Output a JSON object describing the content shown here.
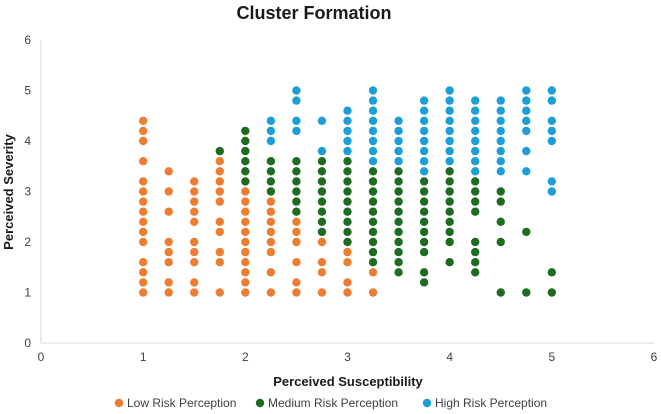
{
  "chart_data": {
    "type": "scatter",
    "title": "Cluster Formation",
    "xlabel": "Perceived Susceptibility",
    "ylabel": "Perceived Severity",
    "xlim": [
      0,
      6
    ],
    "ylim": [
      0,
      6
    ],
    "xticks": [
      0,
      1,
      2,
      3,
      4,
      5,
      6
    ],
    "yticks": [
      0,
      1,
      2,
      3,
      4,
      5,
      6
    ],
    "grid": false,
    "legend_position": "bottom",
    "series": [
      {
        "name": "Low Risk Perception",
        "color": "#ED7D31",
        "points": [
          [
            1,
            1
          ],
          [
            1,
            1.2
          ],
          [
            1,
            1.4
          ],
          [
            1,
            1.6
          ],
          [
            1,
            2
          ],
          [
            1,
            2.2
          ],
          [
            1,
            2.4
          ],
          [
            1,
            2.6
          ],
          [
            1,
            2.8
          ],
          [
            1,
            3
          ],
          [
            1,
            3.2
          ],
          [
            1,
            3.6
          ],
          [
            1,
            4
          ],
          [
            1,
            4.2
          ],
          [
            1,
            4.4
          ],
          [
            1.25,
            1
          ],
          [
            1.25,
            1.2
          ],
          [
            1.25,
            1.6
          ],
          [
            1.25,
            1.8
          ],
          [
            1.25,
            2
          ],
          [
            1.25,
            2.6
          ],
          [
            1.25,
            3
          ],
          [
            1.25,
            3.4
          ],
          [
            1.5,
            1
          ],
          [
            1.5,
            1.2
          ],
          [
            1.5,
            1.6
          ],
          [
            1.5,
            1.8
          ],
          [
            1.5,
            2
          ],
          [
            1.5,
            2.4
          ],
          [
            1.5,
            2.6
          ],
          [
            1.5,
            2.8
          ],
          [
            1.5,
            3
          ],
          [
            1.5,
            3.2
          ],
          [
            1.75,
            1
          ],
          [
            1.75,
            1.6
          ],
          [
            1.75,
            1.8
          ],
          [
            1.75,
            2.2
          ],
          [
            1.75,
            2.4
          ],
          [
            1.75,
            2.8
          ],
          [
            1.75,
            3
          ],
          [
            1.75,
            3.2
          ],
          [
            1.75,
            3.4
          ],
          [
            1.75,
            3.6
          ],
          [
            2,
            1
          ],
          [
            2,
            1.2
          ],
          [
            2,
            1.4
          ],
          [
            2,
            1.6
          ],
          [
            2,
            1.8
          ],
          [
            2,
            2
          ],
          [
            2,
            2.2
          ],
          [
            2,
            2.4
          ],
          [
            2,
            2.6
          ],
          [
            2,
            2.8
          ],
          [
            2,
            3
          ],
          [
            2.25,
            1
          ],
          [
            2.25,
            1.4
          ],
          [
            2.25,
            1.8
          ],
          [
            2.25,
            2
          ],
          [
            2.25,
            2.2
          ],
          [
            2.25,
            2.4
          ],
          [
            2.25,
            2.6
          ],
          [
            2.25,
            2.8
          ],
          [
            2.5,
            1
          ],
          [
            2.5,
            1.2
          ],
          [
            2.5,
            1.6
          ],
          [
            2.5,
            2
          ],
          [
            2.5,
            2.2
          ],
          [
            2.5,
            2.4
          ],
          [
            2.75,
            1
          ],
          [
            2.75,
            1.4
          ],
          [
            2.75,
            1.6
          ],
          [
            2.75,
            2
          ],
          [
            3,
            1
          ],
          [
            3,
            1.2
          ],
          [
            3,
            1.6
          ],
          [
            3,
            1.8
          ],
          [
            3.25,
            1
          ],
          [
            3.25,
            1.4
          ]
        ]
      },
      {
        "name": "Medium Risk Perception",
        "color": "#1E6B22",
        "points": [
          [
            1.75,
            3.8
          ],
          [
            2,
            3.2
          ],
          [
            2,
            3.4
          ],
          [
            2,
            3.6
          ],
          [
            2,
            3.8
          ],
          [
            2,
            4
          ],
          [
            2,
            4.2
          ],
          [
            2.25,
            3
          ],
          [
            2.25,
            3.2
          ],
          [
            2.25,
            3.4
          ],
          [
            2.25,
            3.6
          ],
          [
            2.5,
            2.6
          ],
          [
            2.5,
            2.8
          ],
          [
            2.5,
            3
          ],
          [
            2.5,
            3.2
          ],
          [
            2.5,
            3.4
          ],
          [
            2.5,
            3.6
          ],
          [
            2.75,
            2.2
          ],
          [
            2.75,
            2.4
          ],
          [
            2.75,
            2.6
          ],
          [
            2.75,
            2.8
          ],
          [
            2.75,
            3
          ],
          [
            2.75,
            3.2
          ],
          [
            2.75,
            3.4
          ],
          [
            2.75,
            3.6
          ],
          [
            3,
            2
          ],
          [
            3,
            2.2
          ],
          [
            3,
            2.4
          ],
          [
            3,
            2.6
          ],
          [
            3,
            2.8
          ],
          [
            3,
            3
          ],
          [
            3,
            3.2
          ],
          [
            3,
            3.4
          ],
          [
            3,
            3.6
          ],
          [
            3.25,
            1.6
          ],
          [
            3.25,
            1.8
          ],
          [
            3.25,
            2
          ],
          [
            3.25,
            2.2
          ],
          [
            3.25,
            2.4
          ],
          [
            3.25,
            2.6
          ],
          [
            3.25,
            2.8
          ],
          [
            3.25,
            3
          ],
          [
            3.25,
            3.2
          ],
          [
            3.25,
            3.4
          ],
          [
            3.5,
            1.4
          ],
          [
            3.5,
            1.6
          ],
          [
            3.5,
            1.8
          ],
          [
            3.5,
            2
          ],
          [
            3.5,
            2.2
          ],
          [
            3.5,
            2.4
          ],
          [
            3.5,
            2.6
          ],
          [
            3.5,
            2.8
          ],
          [
            3.5,
            3
          ],
          [
            3.5,
            3.2
          ],
          [
            3.5,
            3.4
          ],
          [
            3.75,
            1.2
          ],
          [
            3.75,
            1.4
          ],
          [
            3.75,
            1.8
          ],
          [
            3.75,
            2
          ],
          [
            3.75,
            2.2
          ],
          [
            3.75,
            2.4
          ],
          [
            3.75,
            2.6
          ],
          [
            3.75,
            2.8
          ],
          [
            3.75,
            3
          ],
          [
            3.75,
            3.2
          ],
          [
            4,
            1.6
          ],
          [
            4,
            2
          ],
          [
            4,
            2.2
          ],
          [
            4,
            2.4
          ],
          [
            4,
            2.6
          ],
          [
            4,
            2.8
          ],
          [
            4,
            3
          ],
          [
            4,
            3.2
          ],
          [
            4,
            3.4
          ],
          [
            4.25,
            1.4
          ],
          [
            4.25,
            1.6
          ],
          [
            4.25,
            1.8
          ],
          [
            4.25,
            2
          ],
          [
            4.25,
            2.6
          ],
          [
            4.25,
            2.8
          ],
          [
            4.25,
            3
          ],
          [
            4.25,
            3.2
          ],
          [
            4.5,
            1
          ],
          [
            4.5,
            2
          ],
          [
            4.5,
            2.4
          ],
          [
            4.5,
            2.8
          ],
          [
            4.5,
            3
          ],
          [
            4.75,
            1
          ],
          [
            4.75,
            2.2
          ],
          [
            5,
            1
          ],
          [
            5,
            1.4
          ]
        ]
      },
      {
        "name": "High Risk Perception",
        "color": "#1C9FD9",
        "points": [
          [
            2.25,
            4
          ],
          [
            2.25,
            4.2
          ],
          [
            2.25,
            4.4
          ],
          [
            2.5,
            4.2
          ],
          [
            2.5,
            4.4
          ],
          [
            2.5,
            4.8
          ],
          [
            2.5,
            5
          ],
          [
            2.75,
            3.8
          ],
          [
            2.75,
            4.4
          ],
          [
            3,
            3.8
          ],
          [
            3,
            4
          ],
          [
            3,
            4.2
          ],
          [
            3,
            4.4
          ],
          [
            3,
            4.6
          ],
          [
            3.25,
            3.6
          ],
          [
            3.25,
            3.8
          ],
          [
            3.25,
            4
          ],
          [
            3.25,
            4.2
          ],
          [
            3.25,
            4.4
          ],
          [
            3.25,
            4.6
          ],
          [
            3.25,
            4.8
          ],
          [
            3.25,
            5
          ],
          [
            3.5,
            3.6
          ],
          [
            3.5,
            3.8
          ],
          [
            3.5,
            4
          ],
          [
            3.5,
            4.2
          ],
          [
            3.5,
            4.4
          ],
          [
            3.75,
            3.4
          ],
          [
            3.75,
            3.6
          ],
          [
            3.75,
            3.8
          ],
          [
            3.75,
            4
          ],
          [
            3.75,
            4.2
          ],
          [
            3.75,
            4.4
          ],
          [
            3.75,
            4.6
          ],
          [
            3.75,
            4.8
          ],
          [
            4,
            3.6
          ],
          [
            4,
            3.8
          ],
          [
            4,
            4
          ],
          [
            4,
            4.2
          ],
          [
            4,
            4.4
          ],
          [
            4,
            4.6
          ],
          [
            4,
            4.8
          ],
          [
            4,
            5
          ],
          [
            4.25,
            3.4
          ],
          [
            4.25,
            3.6
          ],
          [
            4.25,
            3.8
          ],
          [
            4.25,
            4
          ],
          [
            4.25,
            4.2
          ],
          [
            4.25,
            4.4
          ],
          [
            4.25,
            4.6
          ],
          [
            4.25,
            4.8
          ],
          [
            4.5,
            3.4
          ],
          [
            4.5,
            3.6
          ],
          [
            4.5,
            3.8
          ],
          [
            4.5,
            4
          ],
          [
            4.5,
            4.2
          ],
          [
            4.5,
            4.4
          ],
          [
            4.5,
            4.6
          ],
          [
            4.5,
            4.8
          ],
          [
            4.75,
            3.4
          ],
          [
            4.75,
            3.8
          ],
          [
            4.75,
            4.2
          ],
          [
            4.75,
            4.4
          ],
          [
            4.75,
            4.6
          ],
          [
            4.75,
            4.8
          ],
          [
            4.75,
            5
          ],
          [
            5,
            3
          ],
          [
            5,
            3.2
          ],
          [
            5,
            4
          ],
          [
            5,
            4.2
          ],
          [
            5,
            4.4
          ],
          [
            5,
            4.8
          ],
          [
            5,
            5
          ]
        ]
      }
    ]
  }
}
